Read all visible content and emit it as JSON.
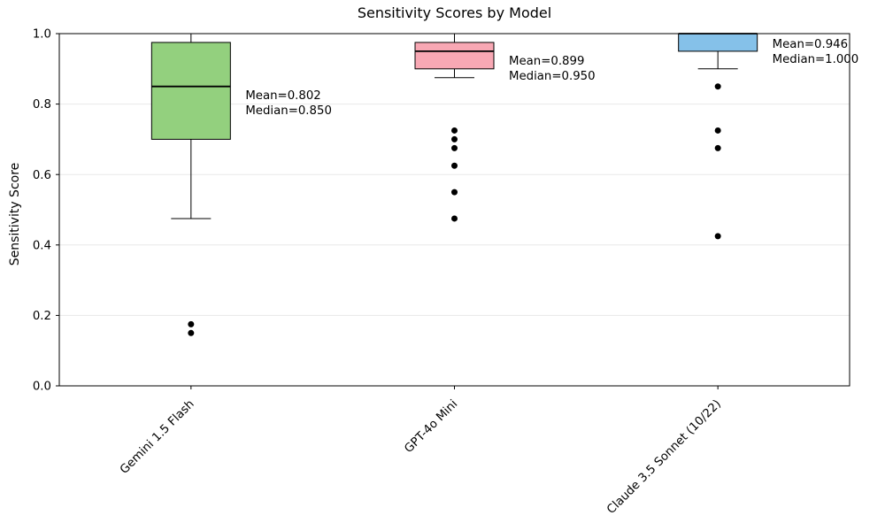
{
  "chart_data": {
    "type": "boxplot",
    "title": "Sensitivity Scores by Model",
    "xlabel": "",
    "ylabel": "Sensitivity Score",
    "ylim": [
      0.0,
      1.0
    ],
    "yticks": [
      0.0,
      0.2,
      0.4,
      0.6,
      0.8,
      1.0
    ],
    "ytick_labels": [
      "0.0",
      "0.2",
      "0.4",
      "0.6",
      "0.8",
      "1.0"
    ],
    "grid": "horizontal-y",
    "grid_color": "#e8e8e8",
    "axis_color": "#000000",
    "outlier_color": "#000000",
    "categories": [
      "Gemini 1.5 Flash",
      "GPT-4o Mini",
      "Claude 3.5 Sonnet (10/22)"
    ],
    "series": [
      {
        "label": "Gemini 1.5 Flash",
        "color": "#93d07e",
        "q1": 0.7,
        "median": 0.85,
        "q3": 0.975,
        "whisker_low": 0.475,
        "whisker_high": 1.0,
        "outliers": [
          0.175,
          0.15
        ],
        "mean": 0.802,
        "annotation": [
          "Mean=0.802",
          "Median=0.850"
        ]
      },
      {
        "label": "GPT-4o Mini",
        "color": "#f8a8b4",
        "q1": 0.9,
        "median": 0.95,
        "q3": 0.975,
        "whisker_low": 0.875,
        "whisker_high": 1.0,
        "outliers": [
          0.725,
          0.7,
          0.675,
          0.625,
          0.55,
          0.475
        ],
        "mean": 0.899,
        "annotation": [
          "Mean=0.899",
          "Median=0.950"
        ]
      },
      {
        "label": "Claude 3.5 Sonnet (10/22)",
        "color": "#85c1e9",
        "q1": 0.95,
        "median": 1.0,
        "q3": 1.0,
        "whisker_low": 0.9,
        "whisker_high": 1.0,
        "outliers": [
          0.85,
          0.725,
          0.675,
          0.425
        ],
        "mean": 0.946,
        "annotation": [
          "Mean=0.946",
          "Median=1.000"
        ]
      }
    ]
  }
}
